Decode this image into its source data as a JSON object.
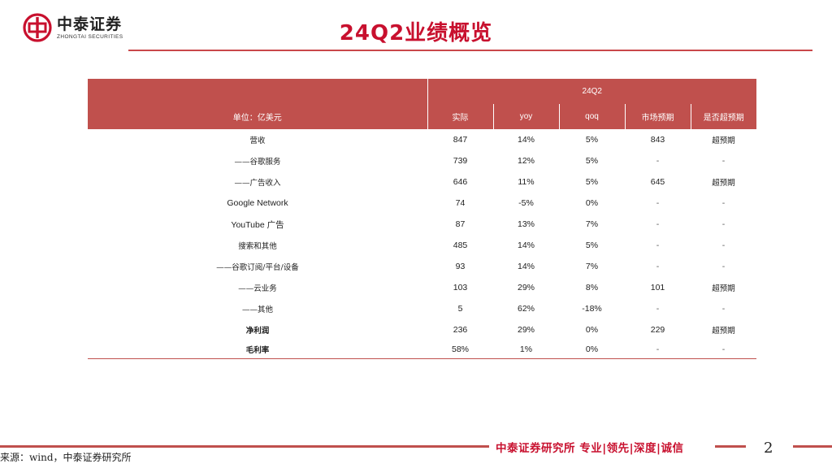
{
  "header": {
    "logo_cn": "中泰证券",
    "logo_en": "ZHONGTAI SECURITIES",
    "title": "24Q2业绩概览"
  },
  "table": {
    "period": "24Q2",
    "unit_label": "单位：亿美元",
    "columns": [
      "实际",
      "yoy",
      "qoq",
      "市场预期",
      "是否超预期"
    ],
    "rows": [
      {
        "label": "营收",
        "actual": "847",
        "yoy": "14%",
        "qoq": "5%",
        "expect": "843",
        "beat": "超预期"
      },
      {
        "label": "——谷歌服务",
        "actual": "739",
        "yoy": "12%",
        "qoq": "5%",
        "expect": "-",
        "beat": "-"
      },
      {
        "label": "——广告收入",
        "actual": "646",
        "yoy": "11%",
        "qoq": "5%",
        "expect": "645",
        "beat": "超预期"
      },
      {
        "label": "Google Network",
        "actual": "74",
        "yoy": "-5%",
        "qoq": "0%",
        "expect": "-",
        "beat": "-"
      },
      {
        "label": "YouTube 广告",
        "actual": "87",
        "yoy": "13%",
        "qoq": "7%",
        "expect": "-",
        "beat": "-"
      },
      {
        "label": "搜索和其他",
        "actual": "485",
        "yoy": "14%",
        "qoq": "5%",
        "expect": "-",
        "beat": "-"
      },
      {
        "label": "——谷歌订阅/平台/设备",
        "actual": "93",
        "yoy": "14%",
        "qoq": "7%",
        "expect": "-",
        "beat": "-"
      },
      {
        "label": "——云业务",
        "actual": "103",
        "yoy": "29%",
        "qoq": "8%",
        "expect": "101",
        "beat": "超预期"
      },
      {
        "label": "——其他",
        "actual": "5",
        "yoy": "62%",
        "qoq": "-18%",
        "expect": "-",
        "beat": "-"
      },
      {
        "label": "净利润",
        "actual": "236",
        "yoy": "29%",
        "qoq": "0%",
        "expect": "229",
        "beat": "超预期"
      },
      {
        "label": "毛利率",
        "actual": "58%",
        "yoy": "1%",
        "qoq": "0%",
        "expect": "-",
        "beat": "-"
      }
    ]
  },
  "footer": {
    "slogan": "中泰证券研究所 专业|领先|深度|诚信",
    "page_number": "2",
    "source": "来源：wind，中泰证券研究所"
  },
  "colors": {
    "brand_red": "#c8102e",
    "table_header": "#c0504d"
  }
}
